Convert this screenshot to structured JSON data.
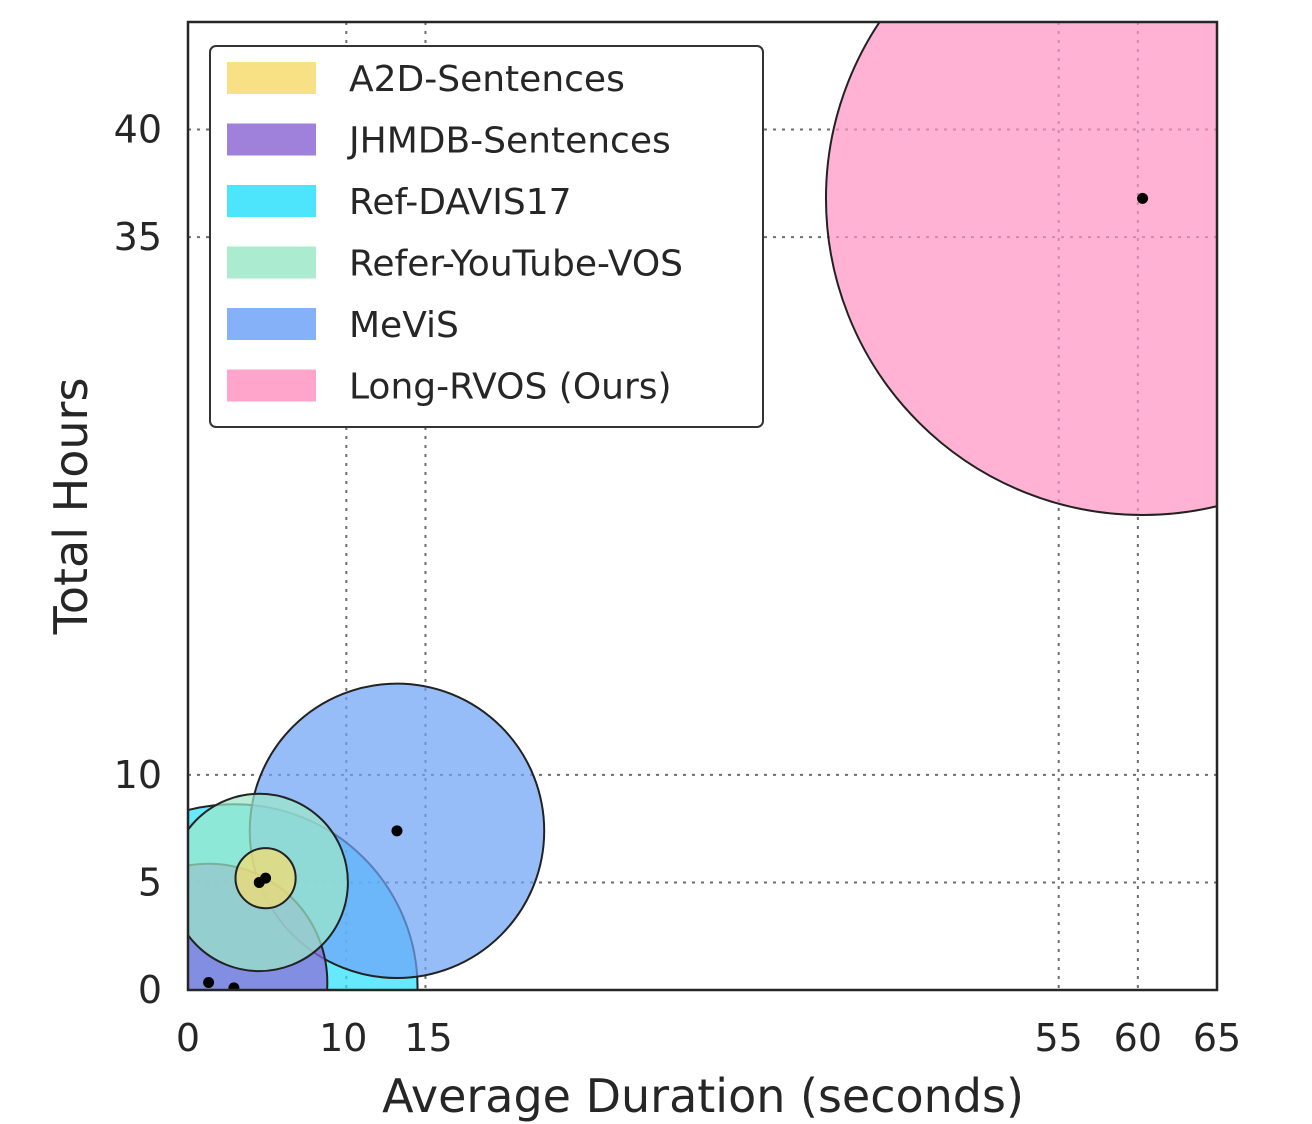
{
  "chart_data": {
    "type": "bubble",
    "title": "",
    "xlabel": "Average Duration (seconds)",
    "ylabel": "Total Hours",
    "xlim": [
      0,
      65
    ],
    "ylim": [
      0,
      45
    ],
    "xticks": [
      0,
      10,
      15,
      55,
      60,
      65
    ],
    "yticks": [
      0,
      5,
      10,
      35,
      40
    ],
    "grid": true,
    "legend_position": "top-left",
    "series": [
      {
        "name": "A2D-Sentences",
        "x": 4.9,
        "y": 5.2,
        "bubble_radius": 1.9,
        "color": "#f7dc6f"
      },
      {
        "name": "JHMDB-Sentences",
        "x": 1.3,
        "y": 0.35,
        "bubble_radius": 7.5,
        "color": "#8e6bd6"
      },
      {
        "name": "Ref-DAVIS17",
        "x": 2.9,
        "y": 0.1,
        "bubble_radius": 11.6,
        "color": "#2de1fc"
      },
      {
        "name": "Refer-YouTube-VOS",
        "x": 4.5,
        "y": 5.0,
        "bubble_radius": 5.6,
        "color": "#9ce8c8"
      },
      {
        "name": "MeViS",
        "x": 13.2,
        "y": 7.4,
        "bubble_radius": 9.3,
        "color": "#6fa3f7"
      },
      {
        "name": "Long-RVOS (Ours)",
        "x": 60.3,
        "y": 36.8,
        "bubble_radius": 20.0,
        "color": "#ff94c2"
      }
    ]
  }
}
